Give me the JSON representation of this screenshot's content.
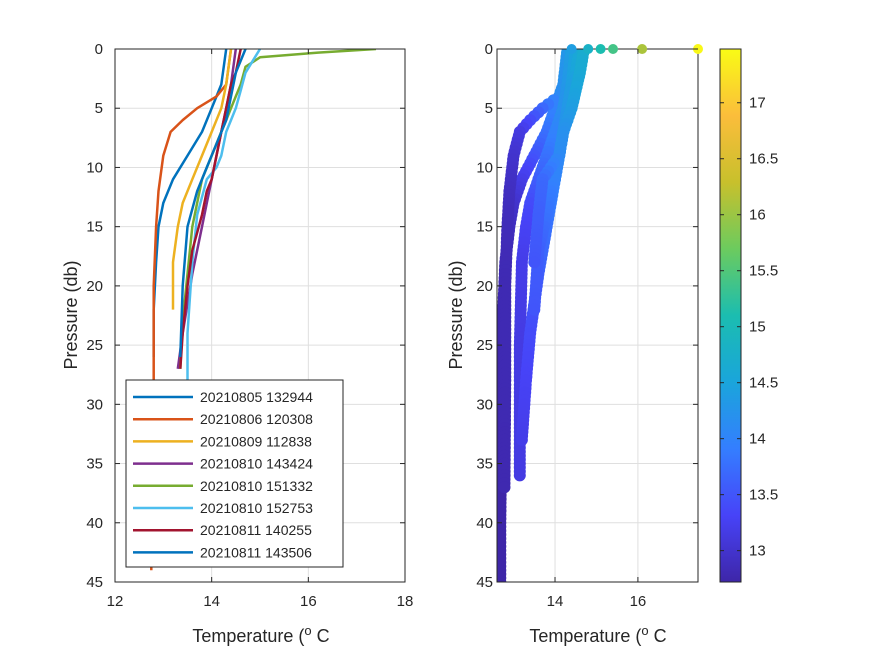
{
  "chart_data": [
    {
      "type": "line",
      "xlabel_text": "Temperature (",
      "xlabel_sup": "o",
      "xlabel_unit": " C",
      "ylabel": "Pressure (db)",
      "xlim": [
        12,
        18
      ],
      "ylim": [
        0,
        45
      ],
      "y_reversed": true,
      "grid": true,
      "xticks": [
        "12",
        "14",
        "16",
        "18"
      ],
      "yticks": [
        "0",
        "5",
        "10",
        "15",
        "20",
        "25",
        "30",
        "35",
        "40",
        "45"
      ],
      "legend_position": "bottom-left",
      "series": [
        {
          "name": "20210805 132944",
          "color": "#0072BD",
          "x": [
            14.3,
            14.2,
            14.0,
            13.8,
            13.5,
            13.2,
            13.0,
            12.9,
            12.85,
            12.8,
            12.8
          ],
          "y": [
            0,
            3,
            5,
            7,
            9,
            11,
            13,
            15,
            18,
            22,
            26
          ]
        },
        {
          "name": "20210806 120308",
          "color": "#D95319",
          "x": [
            14.4,
            14.3,
            14.1,
            13.7,
            13.4,
            13.15,
            13.0,
            12.9,
            12.85,
            12.8,
            12.8,
            12.75,
            12.75
          ],
          "y": [
            0,
            3,
            4,
            5,
            6,
            7,
            9,
            12,
            15,
            20,
            28,
            36,
            44
          ]
        },
        {
          "name": "20210809 112838",
          "color": "#EDB120",
          "x": [
            14.4,
            14.3,
            14.2,
            14.0,
            13.8,
            13.6,
            13.4,
            13.3,
            13.2,
            13.2
          ],
          "y": [
            0,
            3,
            5,
            7,
            9,
            11,
            13,
            15,
            18,
            22
          ]
        },
        {
          "name": "20210810 143424",
          "color": "#7E2F8E",
          "x": [
            14.5,
            14.4,
            14.3,
            14.2,
            14.1,
            14.0,
            13.9,
            13.8,
            13.6,
            13.4,
            13.3
          ],
          "y": [
            0,
            3,
            5,
            7,
            9,
            11,
            13,
            15,
            19,
            24,
            27
          ]
        },
        {
          "name": "20210810 151332",
          "color": "#77AC30",
          "x": [
            17.4,
            16.2,
            15.0,
            14.7,
            14.6,
            14.5,
            14.4,
            14.3,
            14.2,
            14.0,
            13.8,
            13.6,
            13.5,
            13.4,
            13.35
          ],
          "y": [
            0,
            0.3,
            0.7,
            1.5,
            3,
            4,
            5,
            6,
            7,
            9,
            11,
            15,
            19,
            23,
            27
          ]
        },
        {
          "name": "20210810 152753",
          "color": "#4DBEEE",
          "x": [
            15.0,
            14.7,
            14.6,
            14.5,
            14.4,
            14.3,
            14.2,
            14.1,
            13.9,
            13.7,
            13.6,
            13.5,
            13.5
          ],
          "y": [
            0,
            2,
            3.5,
            5,
            6,
            7,
            9,
            10,
            11,
            14,
            18,
            24,
            28
          ]
        },
        {
          "name": "20210811 140255",
          "color": "#A2142F",
          "x": [
            14.6,
            14.5,
            14.4,
            14.3,
            14.2,
            14.1,
            14.0,
            13.9,
            13.8,
            13.6,
            13.5,
            13.4,
            13.35
          ],
          "y": [
            0,
            2,
            3,
            5,
            7,
            9,
            11,
            12,
            14,
            17,
            20,
            24,
            27
          ]
        },
        {
          "name": "20210811 143506",
          "color": "#0072BD",
          "x": [
            14.7,
            14.5,
            14.4,
            14.3,
            14.1,
            13.9,
            13.7,
            13.5,
            13.4,
            13.35
          ],
          "y": [
            0,
            2,
            4,
            6,
            8,
            10,
            12,
            15,
            20,
            26
          ]
        }
      ]
    },
    {
      "type": "scatter",
      "xlabel_text": "Temperature (",
      "xlabel_sup": "o",
      "xlabel_unit": " C",
      "ylabel": "Pressure (db)",
      "xlim": [
        12.6,
        17.45
      ],
      "ylim": [
        0,
        45
      ],
      "y_reversed": true,
      "grid": true,
      "xticks": [
        "14",
        "16"
      ],
      "yticks": [
        "0",
        "5",
        "10",
        "15",
        "20",
        "25",
        "30",
        "35",
        "40",
        "45"
      ],
      "colorbar": {
        "range": [
          12.72,
          17.48
        ],
        "ticks": [
          "13",
          "13.5",
          "14",
          "14.5",
          "15",
          "15.5",
          "16",
          "16.5",
          "17"
        ],
        "colormap": [
          "#3E26A8",
          "#4743F8",
          "#347EFF",
          "#1AA5DB",
          "#1BBDB0",
          "#6CCB5E",
          "#C8C02C",
          "#FBBD3B",
          "#F9FB15"
        ]
      },
      "surface_points": [
        {
          "x": 14.4,
          "y": 0
        },
        {
          "x": 14.8,
          "y": 0
        },
        {
          "x": 15.1,
          "y": 0
        },
        {
          "x": 15.4,
          "y": 0
        },
        {
          "x": 16.1,
          "y": 0
        },
        {
          "x": 17.45,
          "y": 0
        }
      ],
      "profiles": [
        {
          "x": [
            14.3,
            14.2,
            14.0,
            13.8,
            13.5,
            13.2,
            13.0,
            12.9,
            12.8,
            12.75,
            12.7,
            12.7,
            12.68,
            12.68
          ],
          "y": [
            0,
            3,
            5,
            7,
            9,
            11,
            13,
            15,
            18,
            22,
            28,
            34,
            40,
            45
          ]
        },
        {
          "x": [
            14.4,
            14.3,
            14.1,
            13.7,
            13.4,
            13.15,
            13.0,
            12.9,
            12.85,
            12.8,
            12.8,
            12.78
          ],
          "y": [
            0,
            3,
            4,
            5,
            6,
            7,
            9,
            12,
            15,
            20,
            28,
            37
          ]
        },
        {
          "x": [
            14.4,
            14.3,
            14.2,
            14.0,
            13.8,
            13.6,
            13.4,
            13.3,
            13.2,
            13.15,
            13.15
          ],
          "y": [
            0,
            3,
            5,
            7,
            9,
            11,
            13,
            15,
            18,
            25,
            36
          ]
        },
        {
          "x": [
            14.5,
            14.4,
            14.3,
            14.2,
            14.1,
            14.0,
            13.9,
            13.8,
            13.6,
            13.4,
            13.3,
            13.2
          ],
          "y": [
            0,
            3,
            5,
            7,
            9,
            11,
            13,
            15,
            19,
            24,
            28,
            33
          ]
        },
        {
          "x": [
            14.6,
            14.5,
            14.4,
            14.3,
            14.2,
            14.1,
            14.0,
            13.9,
            13.8,
            13.6,
            13.5
          ],
          "y": [
            0,
            2,
            3,
            5,
            7,
            9,
            11,
            12,
            14,
            17,
            22
          ]
        },
        {
          "x": [
            14.7,
            14.6,
            14.5,
            14.4,
            14.3,
            14.2,
            14.1,
            13.9,
            13.7,
            13.6,
            13.5
          ],
          "y": [
            0,
            2,
            3.5,
            5,
            6,
            7,
            9,
            10,
            11,
            14,
            18
          ]
        }
      ]
    }
  ]
}
